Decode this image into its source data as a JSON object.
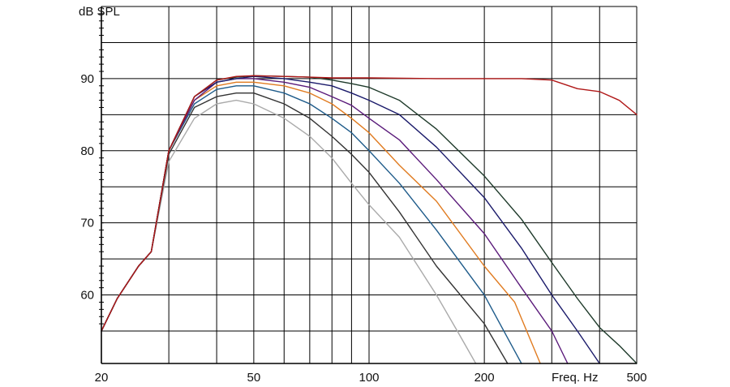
{
  "chart_data": {
    "type": "line",
    "ylabel": "dB SPL",
    "xlabel": "Freq. Hz",
    "x_scale": "log",
    "xlim": [
      20,
      500
    ],
    "ylim": [
      50.5,
      100
    ],
    "grid": true,
    "x_ticks": [
      {
        "value": 20,
        "label": "20"
      },
      {
        "value": 50,
        "label": "50"
      },
      {
        "value": 100,
        "label": "100"
      },
      {
        "value": 200,
        "label": "200"
      },
      {
        "value": 500,
        "label": "500"
      }
    ],
    "y_ticks": [
      {
        "value": 60,
        "label": "60"
      },
      {
        "value": 70,
        "label": "70"
      },
      {
        "value": 80,
        "label": "80"
      },
      {
        "value": 90,
        "label": "90"
      }
    ],
    "x_grid": [
      20,
      30,
      40,
      50,
      60,
      70,
      80,
      90,
      100,
      200,
      300,
      400,
      500
    ],
    "y_grid": [
      55,
      60,
      65,
      70,
      75,
      80,
      85,
      90,
      95,
      100
    ],
    "series": [
      {
        "color": "#aaaaaa",
        "points": [
          [
            20,
            55
          ],
          [
            22,
            59.5
          ],
          [
            25,
            64
          ],
          [
            27,
            66
          ],
          [
            30,
            78.5
          ],
          [
            35,
            84.5
          ],
          [
            40,
            86.5
          ],
          [
            45,
            87
          ],
          [
            50,
            86.5
          ],
          [
            60,
            84.5
          ],
          [
            70,
            82
          ],
          [
            80,
            79
          ],
          [
            90,
            75.5
          ],
          [
            100,
            72.5
          ],
          [
            120,
            68
          ],
          [
            150,
            60
          ],
          [
            170,
            55
          ],
          [
            190,
            50.5
          ]
        ]
      },
      {
        "color": "#333333",
        "points": [
          [
            20,
            55
          ],
          [
            22,
            59.5
          ],
          [
            25,
            64
          ],
          [
            27,
            66
          ],
          [
            30,
            79.5
          ],
          [
            35,
            86
          ],
          [
            40,
            87.5
          ],
          [
            45,
            88
          ],
          [
            50,
            88
          ],
          [
            60,
            86.5
          ],
          [
            70,
            84.5
          ],
          [
            80,
            82
          ],
          [
            90,
            79.5
          ],
          [
            100,
            77
          ],
          [
            120,
            71.5
          ],
          [
            150,
            64
          ],
          [
            200,
            56
          ],
          [
            230,
            50.5
          ]
        ]
      },
      {
        "color": "#1e5b8a",
        "points": [
          [
            20,
            55
          ],
          [
            22,
            59.5
          ],
          [
            25,
            64
          ],
          [
            27,
            66
          ],
          [
            30,
            80
          ],
          [
            35,
            86.5
          ],
          [
            40,
            88.5
          ],
          [
            45,
            89
          ],
          [
            50,
            89
          ],
          [
            60,
            88
          ],
          [
            70,
            86.5
          ],
          [
            80,
            84.5
          ],
          [
            90,
            82.5
          ],
          [
            100,
            80
          ],
          [
            120,
            75.5
          ],
          [
            150,
            69
          ],
          [
            200,
            60
          ],
          [
            250,
            50.5
          ]
        ]
      },
      {
        "color": "#e07b20",
        "points": [
          [
            20,
            55
          ],
          [
            22,
            59.5
          ],
          [
            25,
            64
          ],
          [
            27,
            66
          ],
          [
            30,
            80
          ],
          [
            35,
            87
          ],
          [
            40,
            89
          ],
          [
            45,
            89.5
          ],
          [
            50,
            89.5
          ],
          [
            60,
            89
          ],
          [
            70,
            88
          ],
          [
            80,
            86.5
          ],
          [
            90,
            84.5
          ],
          [
            100,
            82.5
          ],
          [
            120,
            78
          ],
          [
            150,
            73
          ],
          [
            200,
            64
          ],
          [
            240,
            59
          ],
          [
            280,
            50.5
          ]
        ]
      },
      {
        "color": "#5a1a7a",
        "points": [
          [
            20,
            55
          ],
          [
            22,
            59.5
          ],
          [
            25,
            64
          ],
          [
            27,
            66
          ],
          [
            30,
            80
          ],
          [
            35,
            87
          ],
          [
            40,
            89.5
          ],
          [
            45,
            90
          ],
          [
            50,
            90
          ],
          [
            60,
            89.5
          ],
          [
            70,
            88.8
          ],
          [
            80,
            87.5
          ],
          [
            90,
            86.3
          ],
          [
            100,
            84.5
          ],
          [
            120,
            81.5
          ],
          [
            150,
            76
          ],
          [
            200,
            68.5
          ],
          [
            250,
            61
          ],
          [
            300,
            55
          ],
          [
            330,
            50.5
          ]
        ]
      },
      {
        "color": "#1a1a6a",
        "points": [
          [
            20,
            55
          ],
          [
            22,
            59.5
          ],
          [
            25,
            64
          ],
          [
            27,
            66
          ],
          [
            30,
            80
          ],
          [
            35,
            87.5
          ],
          [
            40,
            89.5
          ],
          [
            45,
            90
          ],
          [
            50,
            90.3
          ],
          [
            60,
            90
          ],
          [
            70,
            89.5
          ],
          [
            80,
            89
          ],
          [
            90,
            88
          ],
          [
            100,
            87
          ],
          [
            120,
            85
          ],
          [
            150,
            80.5
          ],
          [
            200,
            73.5
          ],
          [
            250,
            66.5
          ],
          [
            300,
            60
          ],
          [
            350,
            55
          ],
          [
            400,
            50.5
          ]
        ]
      },
      {
        "color": "#1e3a2a",
        "points": [
          [
            20,
            55
          ],
          [
            22,
            59.5
          ],
          [
            25,
            64
          ],
          [
            27,
            66
          ],
          [
            30,
            80
          ],
          [
            35,
            87.5
          ],
          [
            40,
            89.8
          ],
          [
            45,
            90.2
          ],
          [
            50,
            90.4
          ],
          [
            60,
            90.3
          ],
          [
            70,
            90.2
          ],
          [
            80,
            89.8
          ],
          [
            90,
            89.3
          ],
          [
            100,
            88.8
          ],
          [
            120,
            87
          ],
          [
            150,
            83
          ],
          [
            200,
            76.5
          ],
          [
            250,
            70.5
          ],
          [
            300,
            64.5
          ],
          [
            350,
            59.5
          ],
          [
            400,
            55.5
          ],
          [
            450,
            53
          ],
          [
            500,
            50.5
          ]
        ]
      },
      {
        "color": "#b01818",
        "points": [
          [
            20,
            55
          ],
          [
            22,
            59.5
          ],
          [
            25,
            64
          ],
          [
            27,
            66
          ],
          [
            30,
            80
          ],
          [
            35,
            87.5
          ],
          [
            40,
            89.8
          ],
          [
            45,
            90.3
          ],
          [
            50,
            90.4
          ],
          [
            60,
            90.3
          ],
          [
            70,
            90.2
          ],
          [
            80,
            90.1
          ],
          [
            100,
            90.1
          ],
          [
            150,
            90
          ],
          [
            200,
            90
          ],
          [
            250,
            90
          ],
          [
            300,
            89.8
          ],
          [
            350,
            88.6
          ],
          [
            400,
            88.2
          ],
          [
            450,
            87
          ],
          [
            500,
            85
          ]
        ]
      }
    ]
  }
}
